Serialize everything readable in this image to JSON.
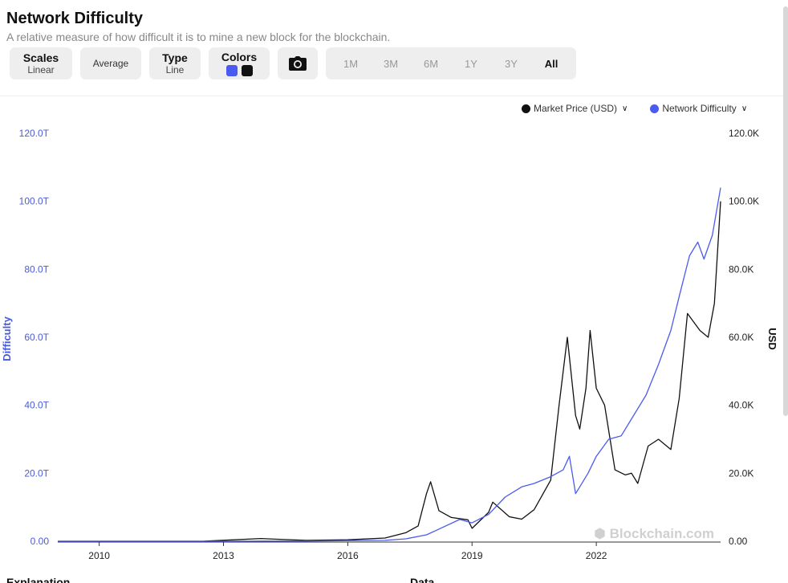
{
  "header": {
    "title": "Network Difficulty",
    "subtitle": "A relative measure of how difficult it is to mine a new block for the blockchain."
  },
  "toolbar": {
    "scales_label": "Scales",
    "scales_value": "Linear",
    "average_label": "Average",
    "type_label": "Type",
    "type_value": "Line",
    "colors_label": "Colors",
    "color_1": "#4a5bf0",
    "color_2": "#111111",
    "ranges": [
      "1M",
      "3M",
      "6M",
      "1Y",
      "3Y",
      "All"
    ],
    "active_range": "All"
  },
  "watermark": "Blockchain.com",
  "footer": {
    "left_label": "Explanation",
    "right_label": "Data"
  },
  "chart_data": {
    "type": "line",
    "title": "Network Difficulty",
    "legend_position": "top-right",
    "grid": false,
    "x_tick_labels": [
      "2010",
      "2013",
      "2016",
      "2019",
      "2022"
    ],
    "xlim": [
      2009.0,
      2025.0
    ],
    "y_left": {
      "label": "Difficulty",
      "range": [
        0,
        120
      ],
      "tick_labels": [
        "0.00",
        "20.0T",
        "40.0T",
        "60.0T",
        "80.0T",
        "100.0T",
        "120.0T"
      ]
    },
    "y_right": {
      "label": "USD",
      "range": [
        0,
        120000
      ],
      "tick_labels": [
        "0.00",
        "20.0K",
        "40.0K",
        "60.0K",
        "80.0K",
        "100.0K",
        "120.0K"
      ]
    },
    "series": [
      {
        "name": "Market Price (USD)",
        "axis": "right",
        "color": "#111111",
        "x": [
          2009.0,
          2012.5,
          2013.9,
          2014.3,
          2015.0,
          2016.0,
          2016.9,
          2017.4,
          2017.7,
          2017.9,
          2018.0,
          2018.2,
          2018.5,
          2018.9,
          2019.0,
          2019.4,
          2019.5,
          2019.9,
          2020.2,
          2020.5,
          2020.9,
          2021.0,
          2021.1,
          2021.3,
          2021.5,
          2021.6,
          2021.75,
          2021.85,
          2022.0,
          2022.2,
          2022.45,
          2022.7,
          2022.85,
          2023.0,
          2023.25,
          2023.5,
          2023.8,
          2024.0,
          2024.2,
          2024.5,
          2024.7,
          2024.85,
          2025.0
        ],
        "y": [
          0,
          5,
          800,
          600,
          250,
          430,
          950,
          2500,
          4500,
          14000,
          17500,
          9000,
          7000,
          6300,
          3800,
          8500,
          11500,
          7200,
          6500,
          9300,
          18000,
          29000,
          40000,
          60000,
          37000,
          33000,
          45000,
          62000,
          45000,
          40000,
          21000,
          19500,
          20000,
          17000,
          28000,
          30000,
          27000,
          42000,
          67000,
          62000,
          60000,
          70000,
          100000
        ]
      },
      {
        "name": "Network Difficulty",
        "axis": "left",
        "color": "#4a5bf0",
        "x": [
          2009.0,
          2013.0,
          2014.0,
          2015.0,
          2016.0,
          2016.9,
          2017.4,
          2017.9,
          2018.1,
          2018.7,
          2019.0,
          2019.4,
          2019.8,
          2020.2,
          2020.5,
          2020.9,
          2021.2,
          2021.35,
          2021.5,
          2021.6,
          2021.8,
          2022.0,
          2022.3,
          2022.6,
          2022.9,
          2023.2,
          2023.5,
          2023.8,
          2024.0,
          2024.25,
          2024.45,
          2024.6,
          2024.8,
          2025.0
        ],
        "y": [
          0,
          0.01,
          0.05,
          0.05,
          0.2,
          0.25,
          0.7,
          1.9,
          3.0,
          6.4,
          5.4,
          7.9,
          13.0,
          16.0,
          17.0,
          19.0,
          21.0,
          25.0,
          14.0,
          16.0,
          20.0,
          25.0,
          30.0,
          31.0,
          37.0,
          43.0,
          52.0,
          62.0,
          72.0,
          84.0,
          88.0,
          83.0,
          90.0,
          104.0
        ]
      }
    ]
  }
}
